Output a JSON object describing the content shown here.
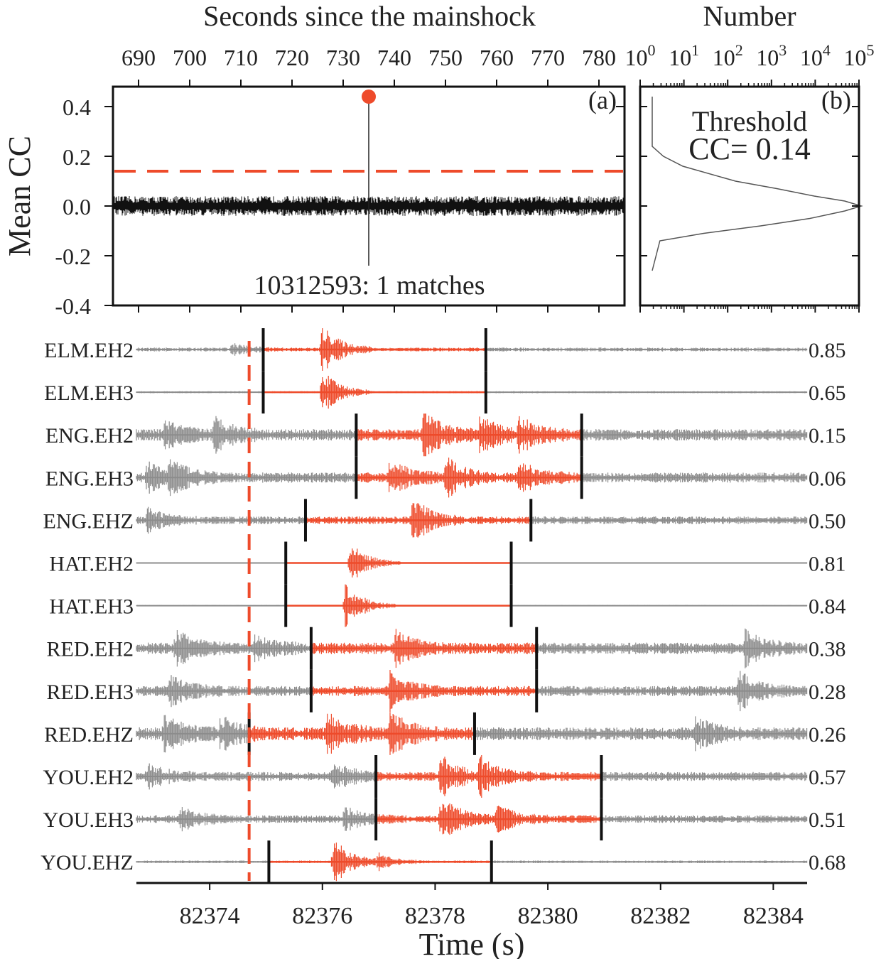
{
  "chart_data": [
    {
      "panel": "(a)",
      "type": "line",
      "x_title": "Seconds since the mainshock",
      "ylabel": "Mean CC",
      "x_ticks": [
        690,
        700,
        710,
        720,
        730,
        740,
        750,
        760,
        770,
        780
      ],
      "xlim": [
        685,
        785
      ],
      "y_ticks": [
        "0.4",
        "0.2",
        "0.0",
        "-0.2",
        "-0.4"
      ],
      "y_tick_values": [
        0.4,
        0.2,
        0.0,
        -0.2,
        -0.4
      ],
      "ylim": [
        -0.4,
        0.48
      ],
      "threshold": 0.14,
      "detection": {
        "x": 735,
        "y": 0.44
      },
      "annotation": "10312593: 1 matches",
      "colors": {
        "trace": "#111111",
        "threshold": "#ee4b2b",
        "detection": "#ee4b2b"
      }
    },
    {
      "panel": "(b)",
      "type": "line",
      "x_title": "Number",
      "x_scale": "log",
      "x_ticks": [
        {
          "base": "10",
          "exp": "0"
        },
        {
          "base": "10",
          "exp": "1"
        },
        {
          "base": "10",
          "exp": "2"
        },
        {
          "base": "10",
          "exp": "3"
        },
        {
          "base": "10",
          "exp": "4"
        },
        {
          "base": "10",
          "exp": "5"
        }
      ],
      "xlim": [
        1,
        100000
      ],
      "annotation_line1": "Threshold",
      "annotation_line2": "CC= 0.14",
      "histogram": {
        "y": [
          0.44,
          0.24,
          0.2,
          0.16,
          0.1,
          0.07,
          0.04,
          0.02,
          0.0,
          -0.02,
          -0.05,
          -0.08,
          -0.11,
          -0.14,
          -0.26
        ],
        "count": [
          1,
          1,
          1.8,
          5,
          80,
          700,
          5000,
          25000,
          60000,
          25000,
          4000,
          300,
          15,
          1.5,
          1
        ]
      }
    },
    {
      "panel": "waveforms",
      "type": "line",
      "xlabel": "Time (s)",
      "x_ticks": [
        82374,
        82376,
        82378,
        82380,
        82382,
        82384
      ],
      "xlim": [
        82372.7,
        82384.6
      ],
      "template_start": 82374.7,
      "colors": {
        "background": "#8c8c8c",
        "template": "#ee4b2b",
        "marker": "#111111"
      },
      "traces": [
        {
          "label": "ELM.EH2",
          "cc": "0.85",
          "start": 82374.95,
          "end": 82378.9,
          "amp": 0.15,
          "bursts": [
            [
              82374.4,
              0.4
            ],
            [
              82376.0,
              1.8
            ]
          ]
        },
        {
          "label": "ELM.EH3",
          "cc": "0.65",
          "start": 82374.95,
          "end": 82378.9,
          "amp": 0.08,
          "bursts": [
            [
              82376.0,
              1.7
            ]
          ]
        },
        {
          "label": "ENG.EH2",
          "cc": "0.15",
          "start": 82376.6,
          "end": 82380.6,
          "amp": 0.45,
          "bursts": [
            [
              82373.2,
              0.9
            ],
            [
              82374.1,
              1.2
            ],
            [
              82377.8,
              1.6
            ],
            [
              82378.8,
              1.3
            ],
            [
              82379.5,
              1.1
            ]
          ]
        },
        {
          "label": "ENG.EH3",
          "cc": "0.06",
          "start": 82376.6,
          "end": 82380.6,
          "amp": 0.4,
          "bursts": [
            [
              82372.9,
              1.0
            ],
            [
              82373.3,
              1.2
            ],
            [
              82377.2,
              1.2
            ],
            [
              82378.2,
              1.4
            ],
            [
              82379.5,
              1.1
            ]
          ]
        },
        {
          "label": "ENG.EHZ",
          "cc": "0.50",
          "start": 82375.7,
          "end": 82379.7,
          "amp": 0.3,
          "bursts": [
            [
              82372.9,
              0.8
            ],
            [
              82377.6,
              1.7
            ]
          ]
        },
        {
          "label": "HAT.EH2",
          "cc": "0.81",
          "start": 82375.35,
          "end": 82379.35,
          "amp": 0.05,
          "bursts": [
            [
              82376.5,
              1.6
            ]
          ]
        },
        {
          "label": "HAT.EH3",
          "cc": "0.84",
          "start": 82375.35,
          "end": 82379.35,
          "amp": 0.05,
          "bursts": [
            [
              82376.4,
              1.8
            ]
          ]
        },
        {
          "label": "RED.EH2",
          "cc": "0.38",
          "start": 82375.8,
          "end": 82379.8,
          "amp": 0.45,
          "bursts": [
            [
              82373.4,
              1.2
            ],
            [
              82374.8,
              0.8
            ],
            [
              82377.3,
              1.2
            ],
            [
              82383.5,
              1.3
            ]
          ]
        },
        {
          "label": "RED.EH3",
          "cc": "0.28",
          "start": 82375.8,
          "end": 82379.8,
          "amp": 0.4,
          "bursts": [
            [
              82373.3,
              1.0
            ],
            [
              82377.2,
              1.3
            ],
            [
              82383.4,
              1.4
            ]
          ]
        },
        {
          "label": "RED.EHZ",
          "cc": "0.26",
          "start": 82374.7,
          "end": 82378.7,
          "amp": 0.5,
          "bursts": [
            [
              82373.2,
              1.2
            ],
            [
              82374.2,
              1.1
            ],
            [
              82376.1,
              1.4
            ],
            [
              82377.2,
              1.5
            ],
            [
              82382.6,
              1.1
            ]
          ]
        },
        {
          "label": "YOU.EH2",
          "cc": "0.57",
          "start": 82376.95,
          "end": 82380.95,
          "amp": 0.35,
          "bursts": [
            [
              82372.9,
              0.9
            ],
            [
              82376.2,
              1.0
            ],
            [
              82378.1,
              1.5
            ],
            [
              82378.8,
              1.3
            ]
          ]
        },
        {
          "label": "YOU.EH3",
          "cc": "0.51",
          "start": 82376.95,
          "end": 82380.95,
          "amp": 0.3,
          "bursts": [
            [
              82373.5,
              0.8
            ],
            [
              82376.4,
              0.8
            ],
            [
              82378.1,
              1.7
            ],
            [
              82379.1,
              1.0
            ]
          ]
        },
        {
          "label": "YOU.EHZ",
          "cc": "0.68",
          "start": 82375.05,
          "end": 82379.0,
          "amp": 0.1,
          "bursts": [
            [
              82376.2,
              1.9
            ],
            [
              82377.0,
              0.6
            ]
          ]
        }
      ]
    }
  ]
}
